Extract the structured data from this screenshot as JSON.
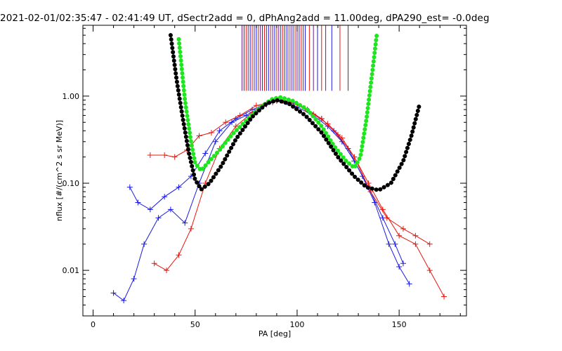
{
  "chart_data": {
    "type": "line",
    "title": "2021-02-01/02:35:47 - 02:41:49 UT, dSectr2add = 0, dPhAng2add = 11.00deg, dPA290_est=  -0.0deg",
    "xlabel": "PA [deg]",
    "ylabel": "nflux [#/(cm^2 s sr MeV)]",
    "xlim": [
      -5,
      183
    ],
    "ylim": [
      0.003,
      6.5
    ],
    "yscale": "log",
    "x_ticks": [
      0,
      50,
      100,
      150
    ],
    "x_tick_labels": [
      "0",
      "50",
      "100",
      "150"
    ],
    "y_ticks": [
      0.01,
      0.1,
      1.0
    ],
    "y_tick_labels": [
      "0.01",
      "0.10",
      "1.00"
    ],
    "colors": {
      "red": "#e8170f",
      "blue": "#1a1ae6",
      "green": "#1ee61e",
      "black": "#000000",
      "purple": "#6a1a8a"
    },
    "series": [
      {
        "color": "blue",
        "style": "line-plus",
        "points": [
          [
            10,
            0.0055
          ],
          [
            15,
            0.0045
          ],
          [
            20,
            0.008
          ],
          [
            25,
            0.02
          ],
          [
            32,
            0.04
          ],
          [
            38,
            0.05
          ],
          [
            45,
            0.035
          ],
          [
            52,
            0.1
          ],
          [
            60,
            0.3
          ],
          [
            68,
            0.5
          ],
          [
            75,
            0.6
          ],
          [
            82,
            0.75
          ],
          [
            88,
            0.85
          ],
          [
            92,
            0.9
          ],
          [
            98,
            0.85
          ],
          [
            105,
            0.7
          ],
          [
            112,
            0.55
          ],
          [
            118,
            0.4
          ],
          [
            125,
            0.25
          ],
          [
            132,
            0.12
          ],
          [
            138,
            0.06
          ],
          [
            145,
            0.02
          ],
          [
            150,
            0.011
          ],
          [
            155,
            0.007
          ]
        ]
      },
      {
        "color": "blue",
        "style": "line-plus",
        "points": [
          [
            18,
            0.09
          ],
          [
            22,
            0.06
          ],
          [
            28,
            0.05
          ],
          [
            35,
            0.07
          ],
          [
            42,
            0.09
          ],
          [
            48,
            0.12
          ],
          [
            55,
            0.22
          ],
          [
            62,
            0.4
          ],
          [
            70,
            0.55
          ],
          [
            78,
            0.7
          ],
          [
            85,
            0.8
          ],
          [
            90,
            0.88
          ],
          [
            95,
            0.85
          ],
          [
            100,
            0.75
          ],
          [
            108,
            0.6
          ],
          [
            115,
            0.45
          ],
          [
            122,
            0.3
          ],
          [
            128,
            0.18
          ],
          [
            135,
            0.09
          ],
          [
            142,
            0.04
          ],
          [
            148,
            0.02
          ],
          [
            152,
            0.012
          ]
        ]
      },
      {
        "color": "red",
        "style": "line-plus",
        "points": [
          [
            28,
            0.21
          ],
          [
            35,
            0.21
          ],
          [
            40,
            0.2
          ],
          [
            46,
            0.24
          ],
          [
            52,
            0.35
          ],
          [
            58,
            0.38
          ],
          [
            65,
            0.5
          ],
          [
            72,
            0.6
          ],
          [
            80,
            0.78
          ],
          [
            88,
            0.86
          ],
          [
            93,
            0.88
          ],
          [
            100,
            0.8
          ],
          [
            108,
            0.62
          ],
          [
            115,
            0.48
          ],
          [
            122,
            0.33
          ],
          [
            128,
            0.2
          ],
          [
            135,
            0.1
          ],
          [
            142,
            0.05
          ],
          [
            150,
            0.025
          ],
          [
            158,
            0.02
          ],
          [
            165,
            0.01
          ],
          [
            172,
            0.005
          ]
        ]
      },
      {
        "color": "red",
        "style": "line-plus",
        "points": [
          [
            30,
            0.012
          ],
          [
            36,
            0.01
          ],
          [
            42,
            0.015
          ],
          [
            48,
            0.03
          ],
          [
            55,
            0.1
          ],
          [
            62,
            0.25
          ],
          [
            70,
            0.45
          ],
          [
            78,
            0.65
          ],
          [
            85,
            0.82
          ],
          [
            90,
            0.9
          ],
          [
            96,
            0.86
          ],
          [
            104,
            0.72
          ],
          [
            112,
            0.55
          ],
          [
            120,
            0.36
          ],
          [
            128,
            0.2
          ],
          [
            136,
            0.08
          ],
          [
            144,
            0.04
          ],
          [
            152,
            0.03
          ],
          [
            158,
            0.025
          ],
          [
            165,
            0.02
          ]
        ]
      }
    ],
    "fits": [
      {
        "color": "green",
        "style": "dots",
        "points": [
          [
            42,
            4.5
          ],
          [
            45,
            0.9
          ],
          [
            48,
            0.3
          ],
          [
            50,
            0.17
          ],
          [
            53,
            0.14
          ],
          [
            57,
            0.18
          ],
          [
            62,
            0.24
          ],
          [
            68,
            0.36
          ],
          [
            75,
            0.52
          ],
          [
            82,
            0.75
          ],
          [
            88,
            0.93
          ],
          [
            92,
            0.97
          ],
          [
            98,
            0.88
          ],
          [
            105,
            0.7
          ],
          [
            112,
            0.45
          ],
          [
            118,
            0.27
          ],
          [
            124,
            0.18
          ],
          [
            128,
            0.15
          ],
          [
            131,
            0.2
          ],
          [
            134,
            0.55
          ],
          [
            137,
            2.0
          ],
          [
            139,
            5.0
          ]
        ]
      },
      {
        "color": "black",
        "style": "dots",
        "points": [
          [
            38,
            5.0
          ],
          [
            41,
            1.5
          ],
          [
            44,
            0.55
          ],
          [
            47,
            0.22
          ],
          [
            50,
            0.11
          ],
          [
            53,
            0.085
          ],
          [
            57,
            0.1
          ],
          [
            63,
            0.16
          ],
          [
            70,
            0.32
          ],
          [
            78,
            0.58
          ],
          [
            85,
            0.82
          ],
          [
            90,
            0.9
          ],
          [
            96,
            0.82
          ],
          [
            104,
            0.6
          ],
          [
            112,
            0.38
          ],
          [
            120,
            0.2
          ],
          [
            128,
            0.12
          ],
          [
            134,
            0.09
          ],
          [
            140,
            0.083
          ],
          [
            146,
            0.1
          ],
          [
            152,
            0.18
          ],
          [
            156,
            0.35
          ],
          [
            160,
            0.8
          ]
        ]
      }
    ],
    "markers": {
      "x": [
        73,
        74,
        75,
        76,
        77,
        78,
        79,
        80,
        81,
        82,
        83,
        84,
        85,
        86,
        87,
        88,
        89,
        90,
        91,
        92,
        93,
        94,
        95,
        96,
        97,
        98,
        99,
        100,
        101,
        102,
        103,
        104,
        106,
        108,
        110,
        112,
        114,
        117,
        121,
        125
      ],
      "from_y": 6.5,
      "to_y": 1.15
    }
  }
}
